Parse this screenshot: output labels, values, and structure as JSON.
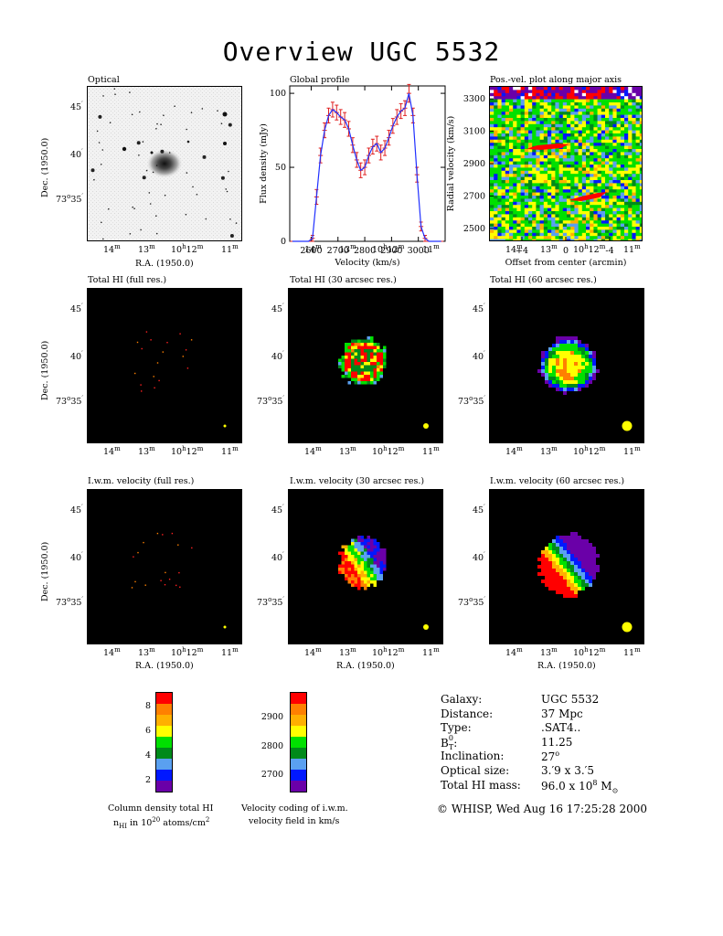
{
  "page": {
    "title": "Overview UGC 5532"
  },
  "panels": {
    "optical": {
      "title": "Optical"
    },
    "global_profile": {
      "title": "Global profile"
    },
    "pv": {
      "title": "Pos.-vel. plot along major axis"
    },
    "hi_full": {
      "title": "Total HI (full res.)"
    },
    "hi_30": {
      "title": "Total HI (30 arcsec res.)"
    },
    "hi_60": {
      "title": "Total HI (60 arcsec res.)"
    },
    "vel_full": {
      "title": "I.w.m. velocity (full res.)"
    },
    "vel_30": {
      "title": "I.w.m. velocity (30 arcsec res.)"
    },
    "vel_60": {
      "title": "I.w.m. velocity (60 arcsec res.)"
    }
  },
  "axes": {
    "ra_label": "R.A. (1950.0)",
    "dec_label": "Dec. (1950.0)",
    "ra_ticks": [
      "14",
      "13",
      "10",
      "12",
      "11"
    ],
    "ra_unit_m": "m",
    "ra_unit_h": "h",
    "dec_ticks": [
      "45",
      "40",
      "73",
      "35"
    ],
    "dec_deg": "o",
    "dec_min": "′"
  },
  "chart_data": [
    {
      "type": "line",
      "title": "Global profile",
      "xlabel": "Velocity (km/s)",
      "ylabel": "Flux density (mJy)",
      "xlim": [
        2520,
        3100
      ],
      "ylim": [
        0,
        105
      ],
      "x_ticks": [
        2600,
        2700,
        2800,
        2900,
        3000
      ],
      "y_ticks": [
        0,
        50,
        100
      ],
      "series": [
        {
          "x": [
            2530,
            2545,
            2560,
            2575,
            2590,
            2605,
            2620,
            2635,
            2650,
            2665,
            2680,
            2695,
            2710,
            2725,
            2740,
            2755,
            2770,
            2785,
            2800,
            2815,
            2830,
            2845,
            2860,
            2875,
            2890,
            2905,
            2920,
            2935,
            2950,
            2965,
            2980,
            2995,
            3010,
            3025,
            3040,
            3055,
            3070,
            3085
          ],
          "y": [
            0,
            0,
            0,
            0,
            0,
            2,
            30,
            58,
            75,
            85,
            89,
            87,
            84,
            82,
            76,
            65,
            55,
            48,
            50,
            58,
            64,
            66,
            60,
            63,
            70,
            78,
            84,
            88,
            90,
            100,
            85,
            45,
            10,
            2,
            0,
            0,
            0,
            0
          ],
          "error": [
            0,
            0,
            0,
            0,
            0,
            2,
            5,
            5,
            5,
            5,
            5,
            5,
            5,
            5,
            5,
            5,
            5,
            5,
            5,
            5,
            5,
            5,
            5,
            5,
            5,
            5,
            5,
            5,
            5,
            6,
            5,
            5,
            3,
            2,
            0,
            0,
            0,
            0
          ]
        }
      ]
    },
    {
      "type": "heatmap",
      "title": "Pos.-vel. plot along major axis",
      "xlabel": "Offset from center (arcmin)",
      "ylabel": "Radial velocity (km/s)",
      "xlim": [
        7,
        -7
      ],
      "ylim": [
        2420,
        3380
      ],
      "x_tick_labels": [
        "+4",
        "0",
        "-4"
      ],
      "x_ticks": [
        4,
        0,
        -4
      ],
      "y_ticks": [
        2500,
        2700,
        2900,
        3100,
        3300
      ]
    }
  ],
  "colorbars": {
    "density": {
      "ticks": [
        2,
        4,
        6,
        8
      ],
      "caption1": "Column density total HI",
      "caption2_a": "n",
      "caption2_sub": "HI",
      "caption2_b": " in 10",
      "caption2_sup": "20",
      "caption2_c": " atoms/cm",
      "caption2_sup2": "2"
    },
    "velocity": {
      "ticks": [
        2700,
        2800,
        2900
      ],
      "caption1": "Velocity coding of i.w.m.",
      "caption2": "velocity field in km/s"
    },
    "colors": [
      "#6a00a8",
      "#0018ff",
      "#5aa0f0",
      "#008a1a",
      "#00e000",
      "#ffff00",
      "#ffb000",
      "#ff8000",
      "#ff0000"
    ]
  },
  "galaxy_info": {
    "rows": [
      {
        "label": "Galaxy:",
        "value": "UGC 5532"
      },
      {
        "label": "Distance:",
        "value": "37 Mpc"
      },
      {
        "label": "Type:",
        "value": ".SAT4.."
      },
      {
        "label": "B",
        "label_sup": "0",
        "label_sub": "T",
        "label_tail": ":",
        "value": "11.25"
      },
      {
        "label": "Inclination:",
        "value": "27",
        "value_sup": "o"
      },
      {
        "label": "Optical size:",
        "value": "3.′9 x 3.′5"
      },
      {
        "label": "Total HI mass:",
        "value": "96.0 x 10",
        "value_sup": "8",
        "value_tail": " M",
        "value_sub": "⊙"
      }
    ],
    "footer": "© WHISP, Wed Aug 16 17:25:28 2000"
  }
}
